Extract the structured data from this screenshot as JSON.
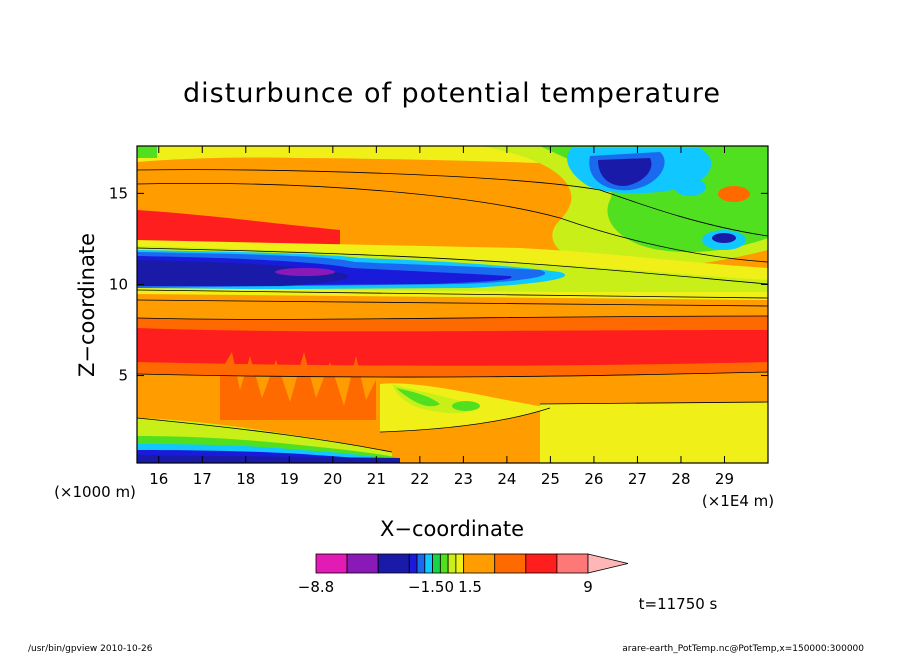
{
  "chart_data": {
    "type": "heatmap",
    "title": "disturbunce of potential temperature",
    "xlabel": "X−coordinate",
    "ylabel": "Z−coordinate",
    "x_unit": "(×1E4 m)",
    "y_unit": "(×1000 m)",
    "xlim": [
      15.5,
      30
    ],
    "ylim": [
      0.2,
      17.6
    ],
    "x_ticks": [
      "16",
      "17",
      "18",
      "19",
      "20",
      "21",
      "22",
      "23",
      "24",
      "25",
      "26",
      "27",
      "28",
      "29"
    ],
    "y_ticks": [
      "5",
      "10",
      "15"
    ],
    "y_tick_values": [
      5,
      10,
      15
    ],
    "x_tick_values": [
      16,
      17,
      18,
      19,
      20,
      21,
      22,
      23,
      24,
      25,
      26,
      27,
      28,
      29
    ],
    "colorbar": {
      "labels": [
        "−8.8",
        "−1.50",
        "1.5",
        "9"
      ],
      "colors": [
        "#e21bb4",
        "#8a1ab8",
        "#1a1aa8",
        "#1a1ada",
        "#1a6af0",
        "#10c8ff",
        "#18d448",
        "#50e020",
        "#c8f018",
        "#f0f018",
        "#ff9c00",
        "#ff6a00",
        "#ff1e1e",
        "#ff7878",
        "#ffb6b6"
      ]
    },
    "annotation": "t=11750 s",
    "grid": false
  },
  "footer": {
    "left": "/usr/bin/gpview   2010-10-26",
    "right": "arare-earth_PotTemp.nc@PotTemp,x=150000:300000"
  }
}
